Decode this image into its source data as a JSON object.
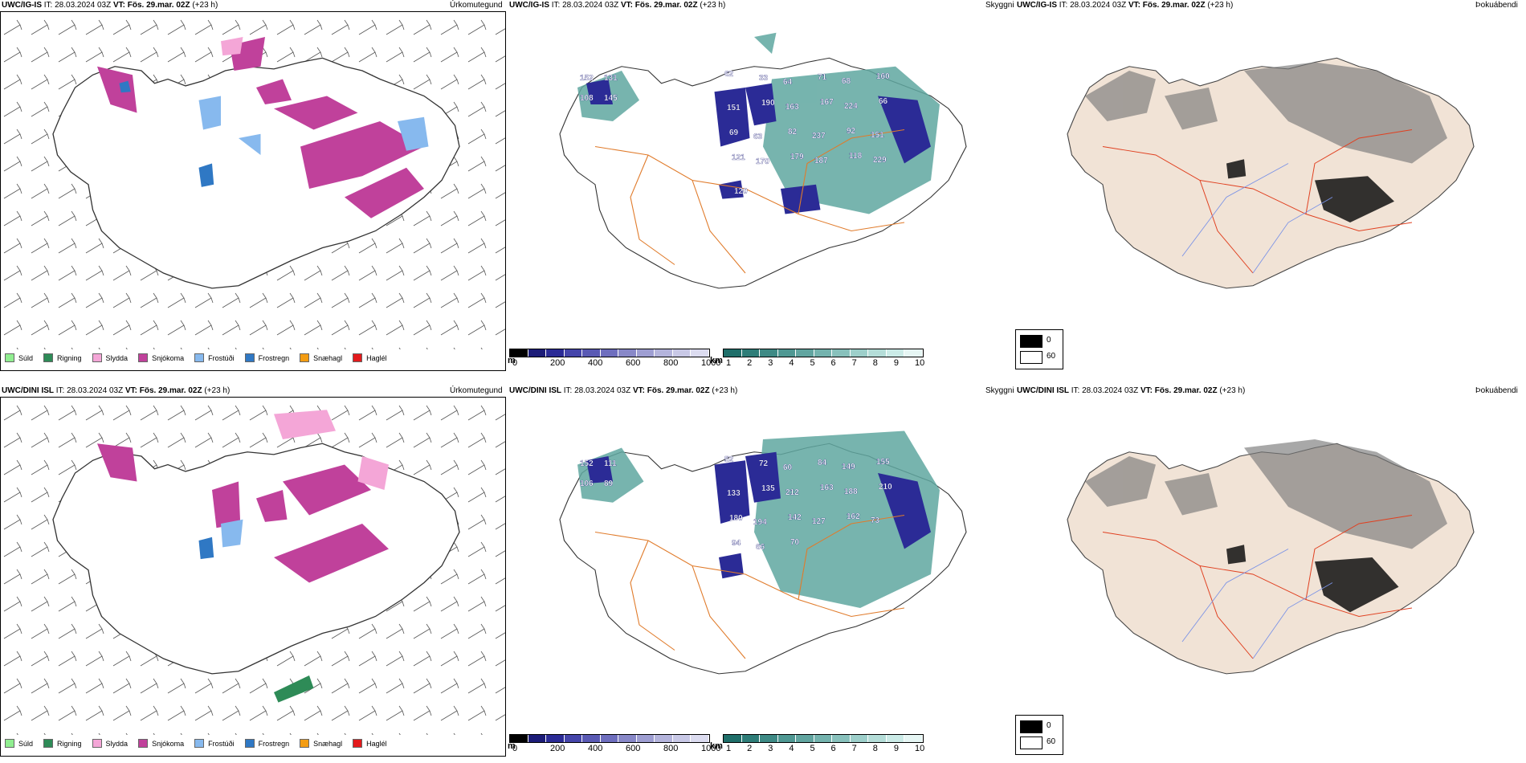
{
  "rows": [
    {
      "model": "UWC/IG-IS",
      "it_label": "IT:",
      "it_value": "28.03.2024 03Z",
      "vt_label": "VT:",
      "vt_value": "Fös. 29.mar. 02Z",
      "lead": "(+23 h)",
      "precip_type_title": "Úrkomutegund",
      "visibility_title": "Skyggni",
      "fog_title": "Þokuábendi"
    },
    {
      "model": "UWC/DINI ISL",
      "it_label": "IT:",
      "it_value": "28.03.2024 03Z",
      "vt_label": "VT:",
      "vt_value": "Fös. 29.mar. 02Z",
      "lead": "(+23 h)",
      "precip_type_title": "Úrkomutegund",
      "visibility_title": "Skyggni",
      "fog_title": "Þokuábendi"
    }
  ],
  "precip_legend": [
    {
      "label": "Súld",
      "color": "#90ee90"
    },
    {
      "label": "Rigning",
      "color": "#2e8b57"
    },
    {
      "label": "Slydda",
      "color": "#f4a6d7"
    },
    {
      "label": "Snjókoma",
      "color": "#c0419b"
    },
    {
      "label": "Frostúði",
      "color": "#87b9ee"
    },
    {
      "label": "Frostregn",
      "color": "#2f78c4"
    },
    {
      "label": "Snæhagl",
      "color": "#f39c12"
    },
    {
      "label": "Haglél",
      "color": "#e31a1c"
    }
  ],
  "visibility_m_bar": {
    "unit": "m",
    "ticks": [
      "0",
      "200",
      "400",
      "600",
      "800",
      "1000"
    ],
    "colors": [
      "#000000",
      "#1c1c78",
      "#2b2b96",
      "#4545aa",
      "#5a5ab4",
      "#6e6ebe",
      "#8888c8",
      "#9e9ed2",
      "#b4b4dc",
      "#c8c8e6",
      "#dcdcf0"
    ]
  },
  "visibility_km_bar": {
    "unit": "km",
    "ticks": [
      "1",
      "2",
      "3",
      "4",
      "5",
      "6",
      "7",
      "8",
      "9",
      "10"
    ],
    "colors": [
      "#1f6f6a",
      "#2e7d78",
      "#3e8a85",
      "#4f9893",
      "#61a5a0",
      "#74b3ae",
      "#88c1bc",
      "#9dcfca",
      "#b4ddd8",
      "#cbebe7",
      "#e6f6f4"
    ]
  },
  "fog_legend": [
    {
      "label": "0",
      "color": "#000000"
    },
    {
      "label": "60",
      "color": "#ffffff"
    }
  ],
  "visibility_labels_top": [
    "152",
    "131",
    "108",
    "145",
    "62",
    "33",
    "64",
    "71",
    "68",
    "160",
    "151",
    "190",
    "163",
    "167",
    "224",
    "66",
    "69",
    "63",
    "82",
    "237",
    "92",
    "151",
    "121",
    "170",
    "179",
    "187",
    "118",
    "229",
    "120"
  ],
  "visibility_labels_bot": [
    "152",
    "111",
    "106",
    "89",
    "52",
    "72",
    "60",
    "84",
    "149",
    "155",
    "133",
    "135",
    "212",
    "163",
    "188",
    "210",
    "180",
    "194",
    "142",
    "127",
    "162",
    "73",
    "94",
    "66",
    "70"
  ]
}
